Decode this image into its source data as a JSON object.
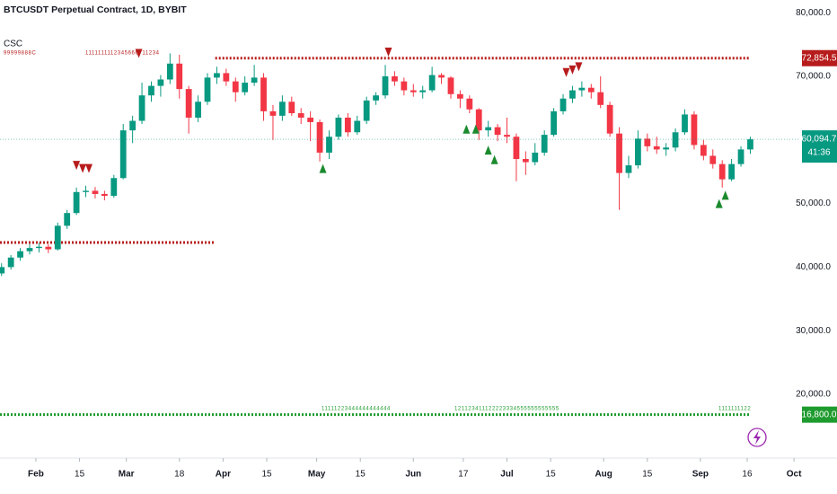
{
  "chart_data": {
    "type": "candlestick",
    "title": "BTCUSDT Perpetual Contract, 1D, BYBIT",
    "indicator": "CSC",
    "x": [
      -11,
      -8,
      -5,
      -2,
      1,
      4,
      7,
      10,
      13,
      16,
      19,
      22,
      25,
      28,
      31,
      34,
      37,
      40,
      43,
      46,
      49,
      52,
      55,
      58,
      61,
      64,
      67,
      70,
      73,
      76,
      79,
      82,
      85,
      88,
      91,
      94,
      97,
      100,
      103,
      106,
      109,
      112,
      115,
      118,
      121,
      124,
      127,
      130,
      133,
      136,
      139,
      142,
      145,
      148,
      151,
      154,
      157,
      160,
      163,
      166,
      169,
      172,
      175,
      178,
      181,
      184,
      187,
      190,
      193,
      196,
      199,
      202,
      205,
      208,
      211,
      214,
      217,
      220,
      223,
      226,
      229
    ],
    "open": [
      39000,
      40000,
      41500,
      42500,
      43000,
      43200,
      42800,
      46500,
      48500,
      51800,
      52000,
      51500,
      51200,
      54000,
      61500,
      63000,
      67000,
      68500,
      69500,
      72000,
      68000,
      63500,
      66000,
      69800,
      70500,
      69200,
      67500,
      69000,
      69800,
      64500,
      63800,
      66000,
      64200,
      63500,
      62800,
      58000,
      60500,
      63500,
      61200,
      63000,
      66200,
      67000,
      70000,
      69200,
      67800,
      67500,
      67800,
      70200,
      69800,
      67200,
      66500,
      64800,
      61500,
      62000,
      60800,
      60500,
      57000,
      56500,
      58000,
      60800,
      64500,
      66500,
      67800,
      68200,
      67500,
      65500,
      61000,
      54800,
      56000,
      60200,
      59000,
      58500,
      58800,
      61200,
      64000,
      59200,
      57500,
      56200,
      53800,
      56200,
      58500
    ],
    "high": [
      40600,
      41900,
      43000,
      43600,
      43800,
      43600,
      47000,
      49000,
      52500,
      52800,
      52600,
      52000,
      54500,
      62500,
      63800,
      69000,
      69200,
      70200,
      73600,
      73400,
      68500,
      67000,
      70500,
      71500,
      71200,
      69800,
      70000,
      71800,
      70500,
      65500,
      67000,
      66800,
      65000,
      64500,
      63200,
      61500,
      64000,
      64200,
      63800,
      66800,
      67500,
      71800,
      70800,
      69800,
      68800,
      68500,
      71500,
      70500,
      70000,
      67800,
      67000,
      65000,
      63000,
      62500,
      63500,
      61000,
      58200,
      59500,
      61500,
      65000,
      67200,
      68500,
      69200,
      68800,
      70000,
      66000,
      62000,
      57500,
      61500,
      61000,
      60500,
      59500,
      61800,
      64800,
      64500,
      60000,
      58500,
      56800,
      57000,
      59000,
      60500
    ],
    "low": [
      38600,
      39600,
      41000,
      42000,
      42300,
      42200,
      42600,
      46000,
      48200,
      51000,
      50800,
      50500,
      50900,
      53800,
      59500,
      62500,
      66000,
      66800,
      68800,
      66500,
      61000,
      62800,
      65500,
      68800,
      68500,
      66000,
      67000,
      68500,
      63000,
      60000,
      63000,
      63800,
      62500,
      59800,
      56600,
      57000,
      60000,
      60500,
      60800,
      62500,
      65500,
      66500,
      68500,
      67000,
      66800,
      66500,
      67500,
      68800,
      66500,
      65000,
      64200,
      60000,
      60500,
      59800,
      59500,
      53500,
      54500,
      56000,
      57500,
      60500,
      64000,
      65800,
      66800,
      66500,
      65000,
      60500,
      49000,
      54000,
      55500,
      58200,
      57800,
      57500,
      58200,
      60800,
      58500,
      56800,
      55500,
      52500,
      53500,
      55800,
      57800
    ],
    "close": [
      40000,
      41500,
      42500,
      43000,
      43200,
      42800,
      46500,
      48500,
      51800,
      52000,
      51500,
      51200,
      54000,
      61500,
      63000,
      67000,
      68500,
      69500,
      72000,
      68000,
      63500,
      66000,
      69800,
      70500,
      69200,
      67500,
      69000,
      69800,
      64500,
      63800,
      66000,
      64200,
      63500,
      62800,
      58000,
      60500,
      63500,
      61200,
      63000,
      66200,
      67000,
      70000,
      69200,
      67800,
      67500,
      67800,
      70200,
      69800,
      67200,
      66500,
      64800,
      61500,
      62000,
      60800,
      60500,
      57000,
      56500,
      58000,
      60800,
      64500,
      66500,
      67800,
      68200,
      67500,
      65500,
      61000,
      54800,
      56000,
      60200,
      59000,
      58500,
      58800,
      61200,
      64000,
      59200,
      57500,
      56200,
      53800,
      56200,
      58500,
      60094.7
    ],
    "up_color": "#089981",
    "down_color": "#f23645",
    "xlim": [
      -11.5,
      244.7
    ],
    "xticks": [
      {
        "value": 0,
        "label": "Feb"
      },
      {
        "value": 14,
        "label": "15"
      },
      {
        "value": 29,
        "label": "Mar"
      },
      {
        "value": 46,
        "label": "18"
      },
      {
        "value": 60,
        "label": "Apr"
      },
      {
        "value": 74,
        "label": "15"
      },
      {
        "value": 90,
        "label": "May"
      },
      {
        "value": 104,
        "label": "15"
      },
      {
        "value": 121,
        "label": "Jun"
      },
      {
        "value": 137,
        "label": "17"
      },
      {
        "value": 151,
        "label": "Jul"
      },
      {
        "value": 165,
        "label": "15"
      },
      {
        "value": 182,
        "label": "Aug"
      },
      {
        "value": 196,
        "label": "15"
      },
      {
        "value": 213,
        "label": "Sep"
      },
      {
        "value": 228,
        "label": "16"
      },
      {
        "value": 243,
        "label": "Oct"
      }
    ],
    "ylim": [
      9970,
      82000
    ],
    "yticks": [
      {
        "value": 20000,
        "label": "20,000.0"
      },
      {
        "value": 30000,
        "label": "30,000.0"
      },
      {
        "value": 40000,
        "label": "40,000.0"
      },
      {
        "value": 50000,
        "label": "50,000.0"
      },
      {
        "value": 70000,
        "label": "70,000.0"
      },
      {
        "value": 80000,
        "label": "80,000.0"
      }
    ],
    "last_price": {
      "value": 60094.7,
      "label": "60,094.7",
      "color": "#089981"
    },
    "countdown": "41:36",
    "levels": [
      {
        "value": 43870,
        "x": [
          -11.5,
          57
        ],
        "color": "#b71c1c"
      },
      {
        "value": 72854.5,
        "label": "72,854.5",
        "x": [
          57.5,
          229
        ],
        "color": "#b71c1c"
      },
      {
        "value": 16800,
        "label": "16,800.0",
        "x": [
          -11.5,
          229
        ],
        "color": "#1e9b2e"
      }
    ],
    "signals": [
      {
        "dir": "down",
        "color": "#b71c1c",
        "x": [
          13,
          15,
          17,
          33,
          113,
          170,
          172,
          174
        ],
        "y": [
          56000,
          55500,
          55500,
          73600,
          73800,
          70600,
          71000,
          71500
        ]
      },
      {
        "dir": "up",
        "color": "#1b8a2e",
        "x": [
          92,
          138,
          141,
          145,
          147,
          219,
          221
        ],
        "y": [
          55500,
          61700,
          61700,
          58400,
          56900,
          50000,
          51300
        ]
      }
    ],
    "count_labels": [
      "99999888C",
      "1111111112345666711234",
      "11111223444444444444",
      "121123411122223334555555555555",
      "1111111122"
    ]
  }
}
